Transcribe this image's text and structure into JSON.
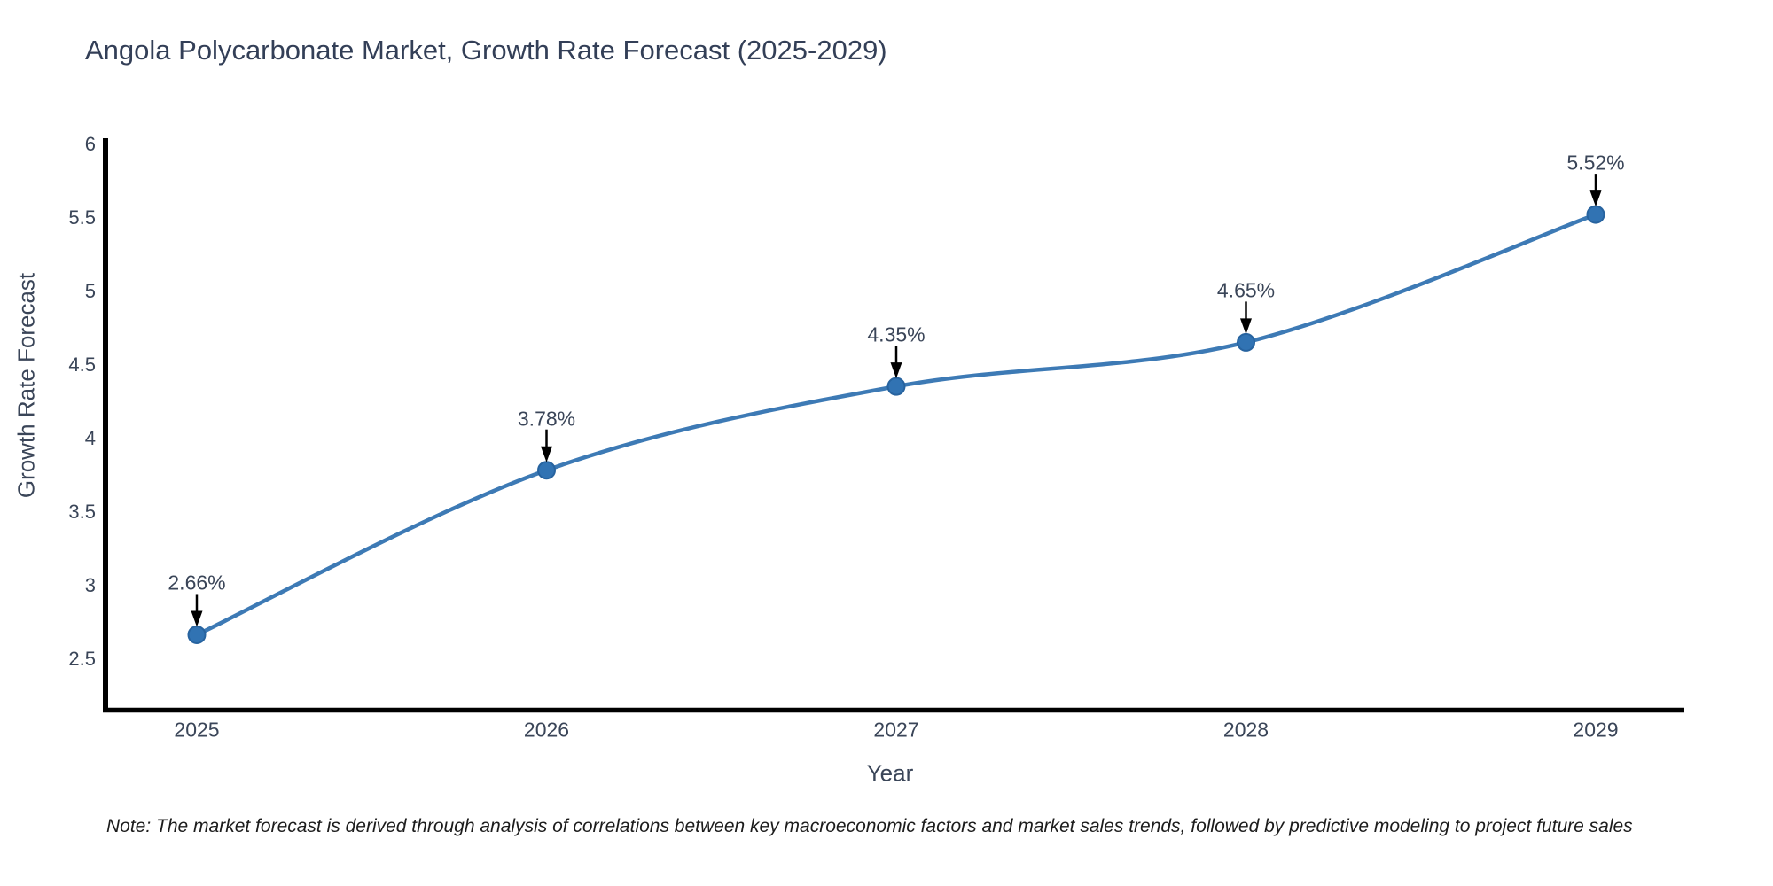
{
  "chart_data": {
    "type": "line",
    "title": "Angola Polycarbonate Market, Growth Rate Forecast (2025-2029)",
    "xlabel": "Year",
    "ylabel": "Growth Rate Forecast",
    "categories": [
      "2025",
      "2026",
      "2027",
      "2028",
      "2029"
    ],
    "series": [
      {
        "name": "Growth Rate Forecast",
        "values": [
          2.66,
          3.78,
          4.35,
          4.65,
          5.52
        ]
      }
    ],
    "values": [
      2.66,
      3.78,
      4.35,
      4.65,
      5.52
    ],
    "point_labels": [
      "2.66%",
      "3.78%",
      "4.35%",
      "4.65%",
      "5.52%"
    ],
    "y_ticks": [
      2.5,
      3,
      3.5,
      4,
      4.5,
      5,
      5.5,
      6
    ],
    "y_tick_labels": [
      "2.5",
      "3",
      "3.5",
      "4",
      "4.5",
      "5",
      "5.5",
      "6"
    ],
    "ylim": [
      2.15,
      6.03
    ],
    "xlim_padding_years": [
      0.26,
      0.25
    ],
    "grid": false,
    "legend": "none",
    "line_style": "smooth-spline",
    "line_color": "#3d7ab5",
    "marker_color": "#3173b3",
    "marker_edge_color": "#27639f",
    "axis_color": "#000000",
    "annotation_arrow_color": "#000000",
    "text_color": "#3a4558",
    "title_color": "#333f57",
    "note": "Note: The market forecast is derived through analysis of correlations between key macroeconomic factors and market sales trends, followed by predictive modeling to project future sales"
  }
}
